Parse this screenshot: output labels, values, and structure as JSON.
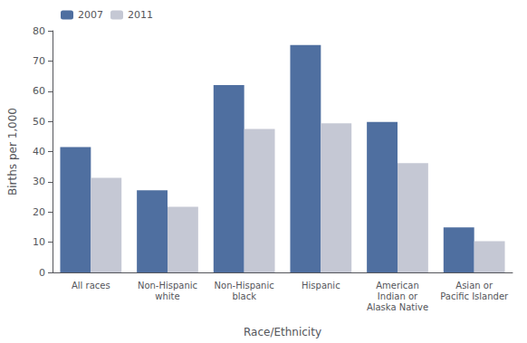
{
  "chart_data": {
    "type": "bar",
    "categories": [
      "All races",
      "Non-Hispanic\nwhite",
      "Non-Hispanic\nblack",
      "Hispanic",
      "American\nIndian or\nAlaska Native",
      "Asian or\nPacific Islander"
    ],
    "series": [
      {
        "name": "2007",
        "color": "#4f6fa0",
        "values": [
          41.5,
          27.2,
          62.0,
          75.3,
          49.8,
          14.9
        ]
      },
      {
        "name": "2011",
        "color": "#c5c8d4",
        "values": [
          31.3,
          21.7,
          47.5,
          49.4,
          36.2,
          10.3
        ]
      }
    ],
    "xlabel": "Race/Ethnicity",
    "ylabel": "Births per 1,000",
    "ylim": [
      0,
      80
    ],
    "yticks": [
      0,
      10,
      20,
      30,
      40,
      50,
      60,
      70,
      80
    ],
    "grid": false,
    "legend": "upper left"
  }
}
